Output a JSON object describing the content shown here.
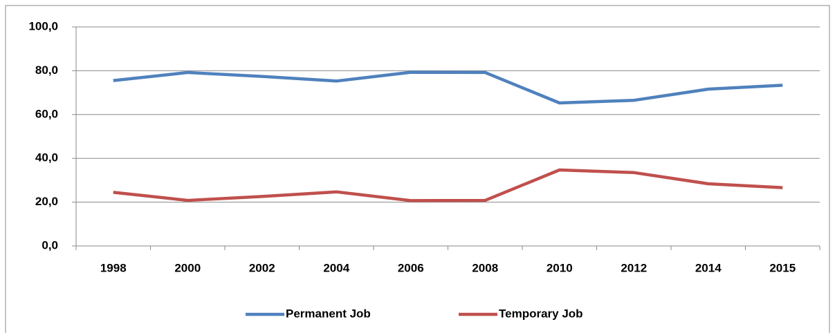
{
  "chart_data": {
    "type": "line",
    "categories": [
      "1998",
      "2000",
      "2002",
      "2004",
      "2006",
      "2008",
      "2010",
      "2012",
      "2014",
      "2015"
    ],
    "series": [
      {
        "name": "Permanent Job",
        "color": "#4f81bd",
        "values": [
          75.5,
          79.2,
          77.4,
          75.3,
          79.3,
          79.2,
          65.3,
          66.5,
          71.6,
          73.4
        ]
      },
      {
        "name": "Temporary Job",
        "color": "#c0504d",
        "values": [
          24.5,
          20.8,
          22.6,
          24.7,
          20.7,
          20.8,
          34.7,
          33.5,
          28.4,
          26.6
        ]
      }
    ],
    "ylim": [
      0,
      100
    ],
    "yticks": [
      {
        "value": 0,
        "label": "0,0"
      },
      {
        "value": 20,
        "label": "20,0"
      },
      {
        "value": 40,
        "label": "40,0"
      },
      {
        "value": 60,
        "label": "60,0"
      },
      {
        "value": 80,
        "label": "80,0"
      },
      {
        "value": 100,
        "label": "100,0"
      }
    ],
    "grid": true,
    "legend": "bottom"
  }
}
